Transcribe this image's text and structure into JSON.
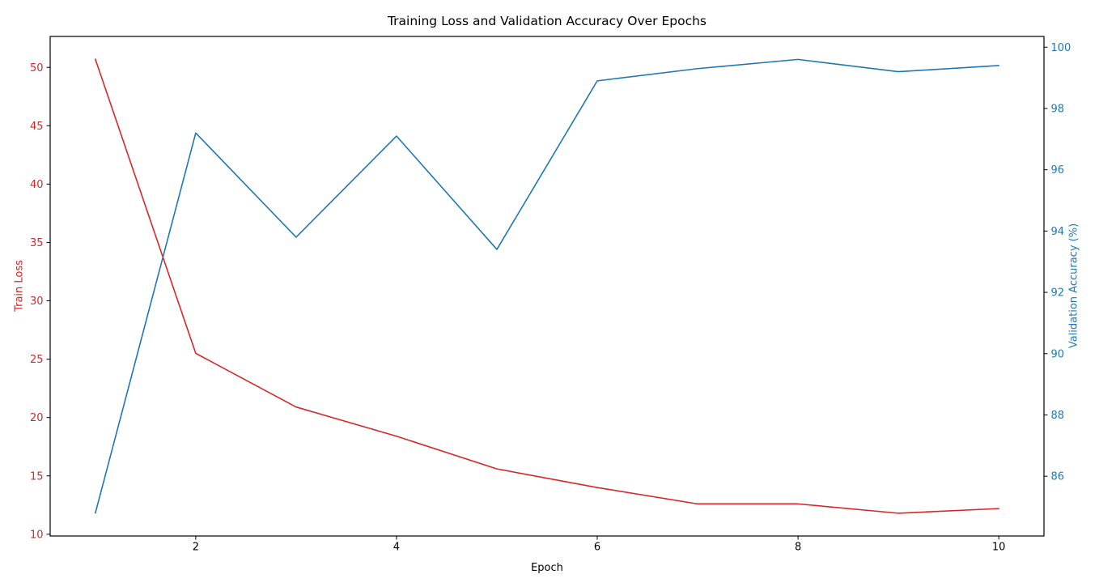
{
  "chart_data": {
    "type": "line",
    "title": "Training Loss and Validation Accuracy Over Epochs",
    "xlabel": "Epoch",
    "x": [
      1,
      2,
      3,
      4,
      5,
      6,
      7,
      8,
      9,
      10
    ],
    "xlim": [
      0.55,
      10.45
    ],
    "xticks": [
      2,
      4,
      6,
      8,
      10
    ],
    "grid": false,
    "legend": "none",
    "left_axis": {
      "label": "Train Loss",
      "color": "#d62728",
      "ticks": [
        10,
        15,
        20,
        25,
        30,
        35,
        40,
        45,
        50
      ],
      "lim": [
        9.85,
        52.65
      ]
    },
    "right_axis": {
      "label": "Validation Accuracy (%)",
      "color": "#1f77b4",
      "ticks": [
        86,
        88,
        90,
        92,
        94,
        96,
        98,
        100
      ],
      "lim": [
        84.05,
        100.35
      ]
    },
    "series": [
      {
        "name": "Train Loss",
        "axis": "left",
        "color": "#d62728",
        "values": [
          50.7,
          25.5,
          20.9,
          18.4,
          15.6,
          14.0,
          12.6,
          12.6,
          11.8,
          12.2
        ]
      },
      {
        "name": "Validation Accuracy (%)",
        "axis": "right",
        "color": "#1f77b4",
        "values": [
          84.8,
          97.2,
          93.8,
          97.1,
          93.4,
          98.9,
          99.3,
          99.6,
          99.2,
          99.4
        ]
      }
    ]
  }
}
